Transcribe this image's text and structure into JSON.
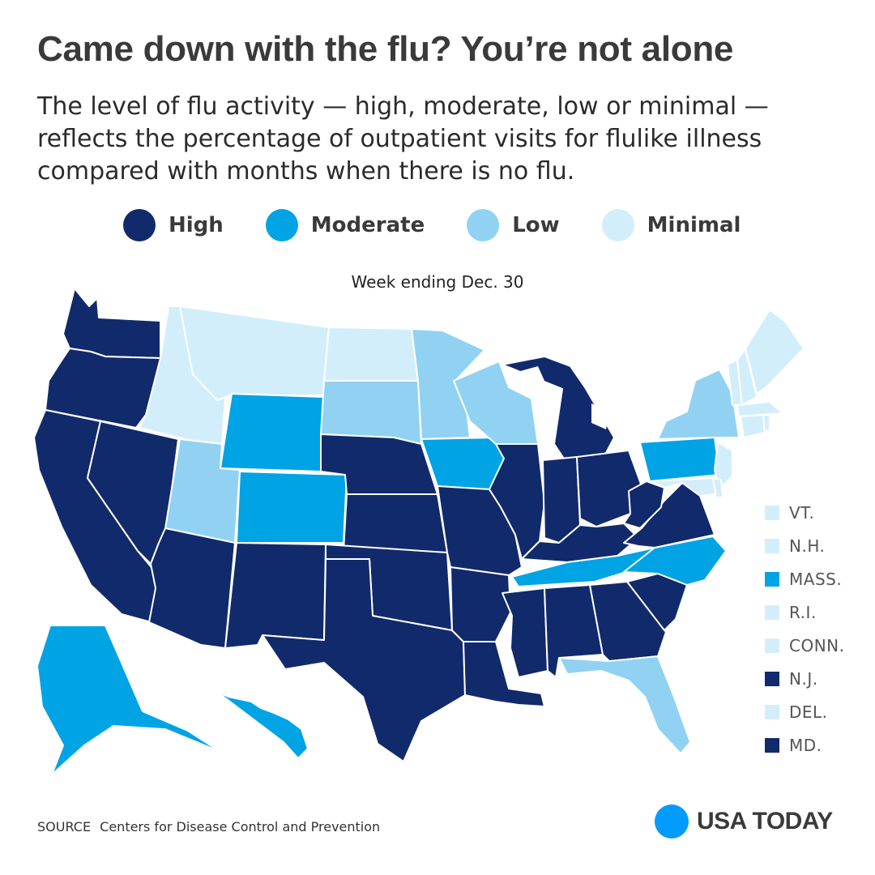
{
  "header": {
    "title": "Came down with the flu? You’re not alone",
    "subtitle": "The level of flu activity — high, moderate, low or minimal — reflects the percentage of outpatient visits for flulike illness compared with months when there is no flu."
  },
  "legend": [
    {
      "label": "High",
      "color": "#112a6b"
    },
    {
      "label": "Moderate",
      "color": "#00a3e4"
    },
    {
      "label": "Low",
      "color": "#91d2f3"
    },
    {
      "label": "Minimal",
      "color": "#d3eefb"
    }
  ],
  "map": {
    "caption": "Week ending Dec. 30",
    "levels": {
      "WA": "High",
      "OR": "High",
      "CA": "High",
      "NV": "High",
      "AZ": "High",
      "ID": "Minimal",
      "MT": "Minimal",
      "ND": "Minimal",
      "WY": "Moderate",
      "CO": "Moderate",
      "UT": "Low",
      "SD": "Low",
      "MN": "Low",
      "WI": "Low",
      "NM": "High",
      "NE": "High",
      "KS": "High",
      "OK": "High",
      "TX": "High",
      "IA": "Moderate",
      "MO": "High",
      "AR": "High",
      "LA": "High",
      "IL": "High",
      "MI": "High",
      "IN": "High",
      "OH": "High",
      "KY": "High",
      "TN": "Moderate",
      "MS": "High",
      "AL": "High",
      "GA": "High",
      "FL": "Low",
      "SC": "High",
      "NC": "Moderate",
      "VA": "High",
      "WV": "High",
      "PA": "Moderate",
      "NY": "Low",
      "ME": "Minimal",
      "AK": "Moderate",
      "HI": "Moderate"
    },
    "small_states": [
      {
        "label": "VT.",
        "level": "Minimal"
      },
      {
        "label": "N.H.",
        "level": "Minimal"
      },
      {
        "label": "MASS.",
        "level": "Moderate"
      },
      {
        "label": "R.I.",
        "level": "Minimal"
      },
      {
        "label": "CONN.",
        "level": "Minimal"
      },
      {
        "label": "N.J.",
        "level": "High"
      },
      {
        "label": "DEL.",
        "level": "Minimal"
      },
      {
        "label": "MD.",
        "level": "High"
      }
    ]
  },
  "footer": {
    "source_label": "SOURCE",
    "source_text": "Centers for Disease Control and Prevention",
    "logo_text": "USA TODAY",
    "logo_color": "#009bff"
  }
}
